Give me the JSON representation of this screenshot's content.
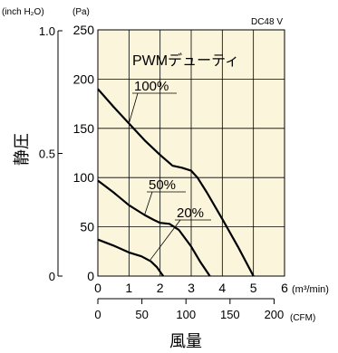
{
  "chart_data": {
    "type": "line",
    "model_label": "DC48 V",
    "legend_title": "PWMデューティ",
    "ylabel": "静圧",
    "xlabel": "風量",
    "inch_unit_label": "(inch H₂O)",
    "pa_unit_label": "(Pa)",
    "m3_unit_label": "(m³/min)",
    "cfm_unit_label": "(CFM)",
    "xlim": [
      0,
      6
    ],
    "ylim": [
      0,
      250
    ],
    "grid": true,
    "m3_ticks": [
      "0",
      "1",
      "2",
      "3",
      "4",
      "5",
      "6"
    ],
    "cfm_ticks": [
      {
        "value": 0,
        "label": "0"
      },
      {
        "value": 50,
        "label": "50"
      },
      {
        "value": 100,
        "label": "100"
      },
      {
        "value": 150,
        "label": "150"
      },
      {
        "value": 200,
        "label": "200"
      }
    ],
    "pa_ticks": [
      "0",
      "50",
      "100",
      "150",
      "200",
      "250"
    ],
    "inch_ticks": [
      {
        "value": 0,
        "label": "0"
      },
      {
        "value": 0.5,
        "label": "0.5"
      },
      {
        "value": 1.0,
        "label": "1.0"
      }
    ],
    "series": [
      {
        "name": "100%",
        "x": [
          0,
          0.5,
          1.0,
          1.5,
          2.0,
          2.4,
          2.7,
          3.0,
          3.2,
          3.5,
          4.0,
          4.5,
          5.0
        ],
        "y": [
          190,
          172,
          155,
          138,
          123,
          112,
          110,
          107,
          100,
          85,
          58,
          30,
          0
        ]
      },
      {
        "name": "50%",
        "x": [
          0,
          0.5,
          1.0,
          1.5,
          1.8,
          2.0,
          2.3,
          2.6,
          3.0,
          3.3,
          3.6
        ],
        "y": [
          97,
          85,
          72,
          62,
          57,
          54,
          53,
          47,
          30,
          14,
          0
        ]
      },
      {
        "name": "20%",
        "x": [
          0,
          0.5,
          1.0,
          1.4,
          1.7,
          1.9,
          2.1
        ],
        "y": [
          37,
          31,
          24,
          20,
          15,
          9,
          0
        ]
      }
    ]
  }
}
